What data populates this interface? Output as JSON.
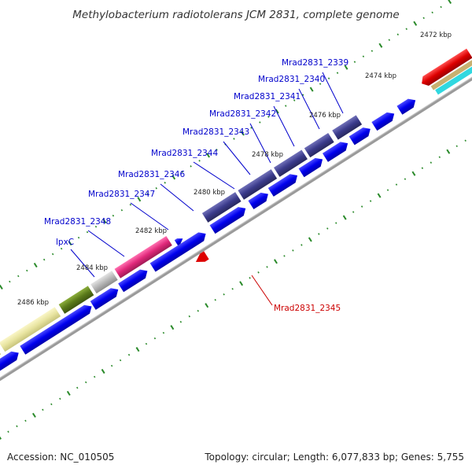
{
  "title": "Methylobacterium radiotolerans JCM 2831, complete genome",
  "accession": "Accession: NC_010505",
  "topology": "Topology: circular; Length: 6,077,833 bp; Genes: 5,755",
  "kbp_labels": [
    "2472 kbp",
    "2474 kbp",
    "2476 kbp",
    "2478 kbp",
    "2480 kbp",
    "2482 kbp",
    "2484 kbp",
    "2486 kbp"
  ],
  "gene_labels": [
    {
      "text": "Mrad2831_2339",
      "color": "#0000cc"
    },
    {
      "text": "Mrad2831_2340",
      "color": "#0000cc"
    },
    {
      "text": "Mrad2831_2341",
      "color": "#0000cc"
    },
    {
      "text": "Mrad2831_2342",
      "color": "#0000cc"
    },
    {
      "text": "Mrad2831_2343",
      "color": "#0000cc"
    },
    {
      "text": "Mrad2831_2344",
      "color": "#0000cc"
    },
    {
      "text": "Mrad2831_2346",
      "color": "#0000cc"
    },
    {
      "text": "Mrad2831_2347",
      "color": "#0000cc"
    },
    {
      "text": "Mrad2831_2348",
      "color": "#0000cc"
    },
    {
      "text": "lpxC",
      "color": "#0000cc"
    },
    {
      "text": "Mrad2831_2345",
      "color": "#cc0000"
    }
  ],
  "colors": {
    "backbone": "#888888",
    "tick": "#2a8a2a",
    "cds_forward": "#0000ee",
    "cds_reverse": "#dd0000",
    "feature_purple": "#3b3b8c",
    "feature_pink": "#e0287a",
    "feature_grey": "#b0b0b0",
    "feature_olive": "#5a7a1a",
    "feature_yellow": "#e8e4a0",
    "feature_tan": "#c8b070",
    "feature_cyan": "#30d8e0"
  }
}
